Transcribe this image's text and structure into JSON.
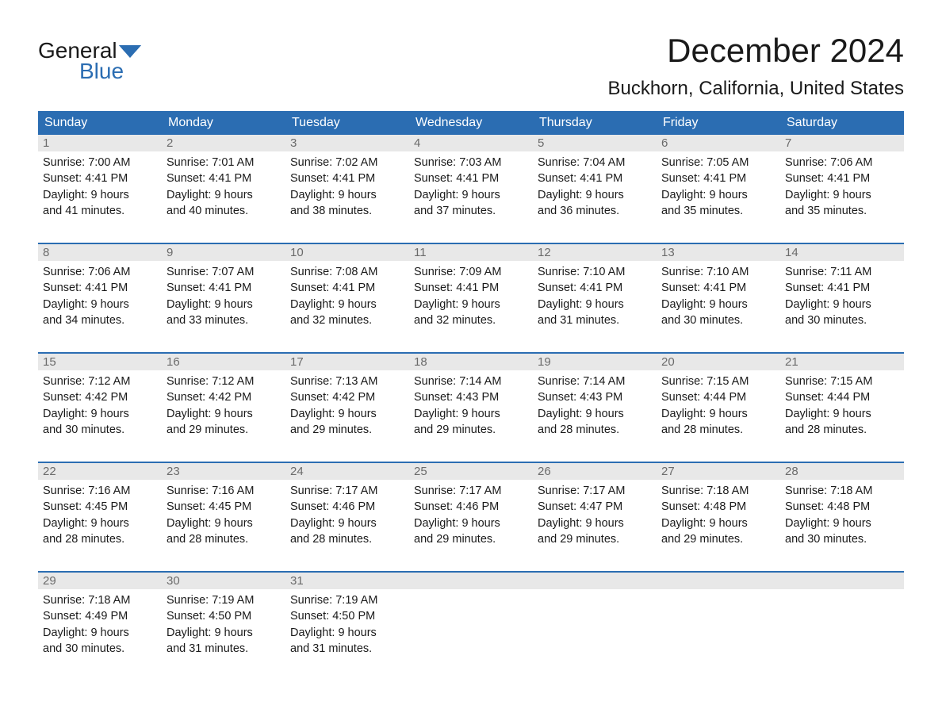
{
  "logo": {
    "text_top": "General",
    "text_bottom": "Blue",
    "flag_color": "#2b6db2"
  },
  "header": {
    "month_title": "December 2024",
    "location": "Buckhorn, California, United States"
  },
  "colors": {
    "header_bg": "#2b6db2",
    "day_num_bg": "#e8e8e8",
    "day_num_text": "#6b6b6b",
    "text": "#1a1a1a",
    "white": "#ffffff"
  },
  "day_names": [
    "Sunday",
    "Monday",
    "Tuesday",
    "Wednesday",
    "Thursday",
    "Friday",
    "Saturday"
  ],
  "weeks": [
    [
      {
        "num": "1",
        "sunrise": "Sunrise: 7:00 AM",
        "sunset": "Sunset: 4:41 PM",
        "daylight1": "Daylight: 9 hours",
        "daylight2": "and 41 minutes."
      },
      {
        "num": "2",
        "sunrise": "Sunrise: 7:01 AM",
        "sunset": "Sunset: 4:41 PM",
        "daylight1": "Daylight: 9 hours",
        "daylight2": "and 40 minutes."
      },
      {
        "num": "3",
        "sunrise": "Sunrise: 7:02 AM",
        "sunset": "Sunset: 4:41 PM",
        "daylight1": "Daylight: 9 hours",
        "daylight2": "and 38 minutes."
      },
      {
        "num": "4",
        "sunrise": "Sunrise: 7:03 AM",
        "sunset": "Sunset: 4:41 PM",
        "daylight1": "Daylight: 9 hours",
        "daylight2": "and 37 minutes."
      },
      {
        "num": "5",
        "sunrise": "Sunrise: 7:04 AM",
        "sunset": "Sunset: 4:41 PM",
        "daylight1": "Daylight: 9 hours",
        "daylight2": "and 36 minutes."
      },
      {
        "num": "6",
        "sunrise": "Sunrise: 7:05 AM",
        "sunset": "Sunset: 4:41 PM",
        "daylight1": "Daylight: 9 hours",
        "daylight2": "and 35 minutes."
      },
      {
        "num": "7",
        "sunrise": "Sunrise: 7:06 AM",
        "sunset": "Sunset: 4:41 PM",
        "daylight1": "Daylight: 9 hours",
        "daylight2": "and 35 minutes."
      }
    ],
    [
      {
        "num": "8",
        "sunrise": "Sunrise: 7:06 AM",
        "sunset": "Sunset: 4:41 PM",
        "daylight1": "Daylight: 9 hours",
        "daylight2": "and 34 minutes."
      },
      {
        "num": "9",
        "sunrise": "Sunrise: 7:07 AM",
        "sunset": "Sunset: 4:41 PM",
        "daylight1": "Daylight: 9 hours",
        "daylight2": "and 33 minutes."
      },
      {
        "num": "10",
        "sunrise": "Sunrise: 7:08 AM",
        "sunset": "Sunset: 4:41 PM",
        "daylight1": "Daylight: 9 hours",
        "daylight2": "and 32 minutes."
      },
      {
        "num": "11",
        "sunrise": "Sunrise: 7:09 AM",
        "sunset": "Sunset: 4:41 PM",
        "daylight1": "Daylight: 9 hours",
        "daylight2": "and 32 minutes."
      },
      {
        "num": "12",
        "sunrise": "Sunrise: 7:10 AM",
        "sunset": "Sunset: 4:41 PM",
        "daylight1": "Daylight: 9 hours",
        "daylight2": "and 31 minutes."
      },
      {
        "num": "13",
        "sunrise": "Sunrise: 7:10 AM",
        "sunset": "Sunset: 4:41 PM",
        "daylight1": "Daylight: 9 hours",
        "daylight2": "and 30 minutes."
      },
      {
        "num": "14",
        "sunrise": "Sunrise: 7:11 AM",
        "sunset": "Sunset: 4:41 PM",
        "daylight1": "Daylight: 9 hours",
        "daylight2": "and 30 minutes."
      }
    ],
    [
      {
        "num": "15",
        "sunrise": "Sunrise: 7:12 AM",
        "sunset": "Sunset: 4:42 PM",
        "daylight1": "Daylight: 9 hours",
        "daylight2": "and 30 minutes."
      },
      {
        "num": "16",
        "sunrise": "Sunrise: 7:12 AM",
        "sunset": "Sunset: 4:42 PM",
        "daylight1": "Daylight: 9 hours",
        "daylight2": "and 29 minutes."
      },
      {
        "num": "17",
        "sunrise": "Sunrise: 7:13 AM",
        "sunset": "Sunset: 4:42 PM",
        "daylight1": "Daylight: 9 hours",
        "daylight2": "and 29 minutes."
      },
      {
        "num": "18",
        "sunrise": "Sunrise: 7:14 AM",
        "sunset": "Sunset: 4:43 PM",
        "daylight1": "Daylight: 9 hours",
        "daylight2": "and 29 minutes."
      },
      {
        "num": "19",
        "sunrise": "Sunrise: 7:14 AM",
        "sunset": "Sunset: 4:43 PM",
        "daylight1": "Daylight: 9 hours",
        "daylight2": "and 28 minutes."
      },
      {
        "num": "20",
        "sunrise": "Sunrise: 7:15 AM",
        "sunset": "Sunset: 4:44 PM",
        "daylight1": "Daylight: 9 hours",
        "daylight2": "and 28 minutes."
      },
      {
        "num": "21",
        "sunrise": "Sunrise: 7:15 AM",
        "sunset": "Sunset: 4:44 PM",
        "daylight1": "Daylight: 9 hours",
        "daylight2": "and 28 minutes."
      }
    ],
    [
      {
        "num": "22",
        "sunrise": "Sunrise: 7:16 AM",
        "sunset": "Sunset: 4:45 PM",
        "daylight1": "Daylight: 9 hours",
        "daylight2": "and 28 minutes."
      },
      {
        "num": "23",
        "sunrise": "Sunrise: 7:16 AM",
        "sunset": "Sunset: 4:45 PM",
        "daylight1": "Daylight: 9 hours",
        "daylight2": "and 28 minutes."
      },
      {
        "num": "24",
        "sunrise": "Sunrise: 7:17 AM",
        "sunset": "Sunset: 4:46 PM",
        "daylight1": "Daylight: 9 hours",
        "daylight2": "and 28 minutes."
      },
      {
        "num": "25",
        "sunrise": "Sunrise: 7:17 AM",
        "sunset": "Sunset: 4:46 PM",
        "daylight1": "Daylight: 9 hours",
        "daylight2": "and 29 minutes."
      },
      {
        "num": "26",
        "sunrise": "Sunrise: 7:17 AM",
        "sunset": "Sunset: 4:47 PM",
        "daylight1": "Daylight: 9 hours",
        "daylight2": "and 29 minutes."
      },
      {
        "num": "27",
        "sunrise": "Sunrise: 7:18 AM",
        "sunset": "Sunset: 4:48 PM",
        "daylight1": "Daylight: 9 hours",
        "daylight2": "and 29 minutes."
      },
      {
        "num": "28",
        "sunrise": "Sunrise: 7:18 AM",
        "sunset": "Sunset: 4:48 PM",
        "daylight1": "Daylight: 9 hours",
        "daylight2": "and 30 minutes."
      }
    ],
    [
      {
        "num": "29",
        "sunrise": "Sunrise: 7:18 AM",
        "sunset": "Sunset: 4:49 PM",
        "daylight1": "Daylight: 9 hours",
        "daylight2": "and 30 minutes."
      },
      {
        "num": "30",
        "sunrise": "Sunrise: 7:19 AM",
        "sunset": "Sunset: 4:50 PM",
        "daylight1": "Daylight: 9 hours",
        "daylight2": "and 31 minutes."
      },
      {
        "num": "31",
        "sunrise": "Sunrise: 7:19 AM",
        "sunset": "Sunset: 4:50 PM",
        "daylight1": "Daylight: 9 hours",
        "daylight2": "and 31 minutes."
      },
      {
        "empty": true
      },
      {
        "empty": true
      },
      {
        "empty": true
      },
      {
        "empty": true
      }
    ]
  ]
}
